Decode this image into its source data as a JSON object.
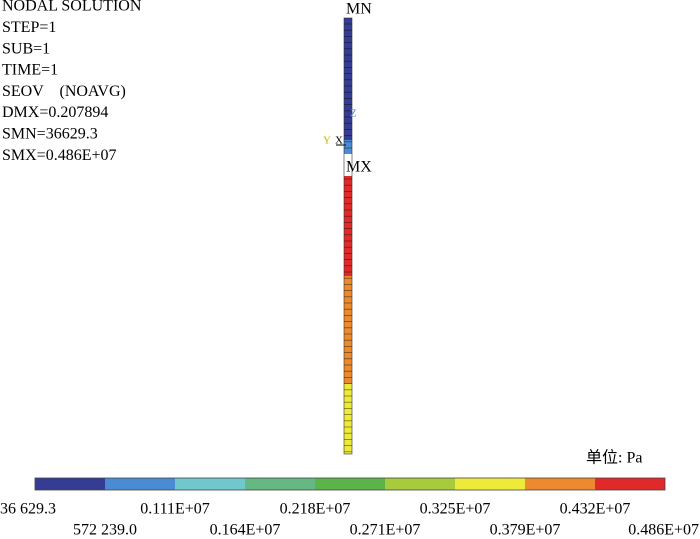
{
  "header": {
    "lines": [
      "NODAL SOLUTION",
      "STEP=1",
      "SUB=1",
      "TIME=1",
      "SEOV    (NOAVG)",
      "DMX=0.207894",
      "SMN=36629.3",
      "SMX=0.486E+07"
    ]
  },
  "model": {
    "min_label": "MN",
    "max_label": "MX",
    "axis_z": "Z",
    "axis_y": "Y",
    "axis_x": "X"
  },
  "legend": {
    "unit": "单位: Pa",
    "colors": [
      "#343d93",
      "#4a8bd3",
      "#70c7cc",
      "#65b882",
      "#5cb34a",
      "#a8cb3c",
      "#eeea3a",
      "#ee8a2e",
      "#e02a2a"
    ],
    "labels": [
      "36 629.3",
      "572 239.0",
      "0.111E+07",
      "0.164E+07",
      "0.218E+07",
      "0.271E+07",
      "0.325E+07",
      "0.379E+07",
      "0.432E+07",
      "0.486E+07"
    ]
  }
}
